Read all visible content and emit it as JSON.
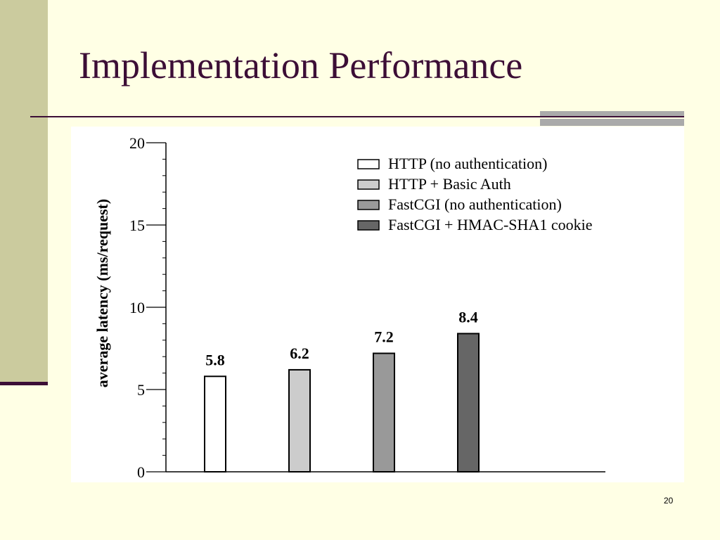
{
  "slide": {
    "title": "Implementation Performance",
    "page_number": "20",
    "colors": {
      "background": "#ffffe5",
      "sidebar": "#cbcb9e",
      "accent_dark": "#3c0e36",
      "accent_gray": "#aaaaaa"
    }
  },
  "chart_data": {
    "type": "bar",
    "title": "",
    "xlabel": "",
    "ylabel": "average latency (ms/request)",
    "ylim": [
      0,
      20
    ],
    "yticks": [
      0,
      5,
      10,
      15,
      20
    ],
    "grid": false,
    "legend_position": "top-right",
    "series": [
      {
        "name": "HTTP (no authentication)",
        "value": 5.8,
        "label": "5.8",
        "color": "#ffffff"
      },
      {
        "name": "HTTP + Basic Auth",
        "value": 6.2,
        "label": "6.2",
        "color": "#cccccc"
      },
      {
        "name": "FastCGI (no authentication)",
        "value": 7.2,
        "label": "7.2",
        "color": "#999999"
      },
      {
        "name": "FastCGI + HMAC-SHA1 cookie",
        "value": 8.4,
        "label": "8.4",
        "color": "#666666"
      }
    ]
  }
}
